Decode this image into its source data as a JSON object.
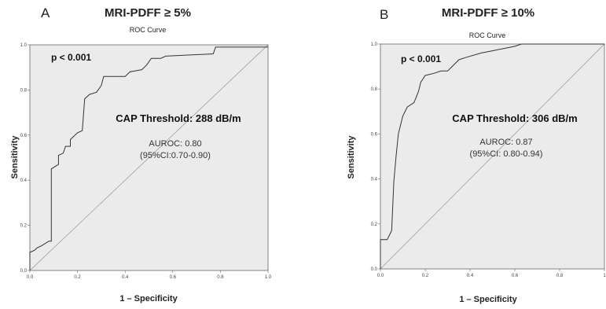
{
  "panels": [
    {
      "letter": "A",
      "title": "MRI-PDFF ≥ 5%",
      "annotations": {
        "p_value": "p < 0.001",
        "threshold": "CAP Threshold: 288 dB/m",
        "auroc": "AUROC: 0.80",
        "ci": "(95%CI:0.70-0.90)"
      }
    },
    {
      "letter": "B",
      "title": "MRI-PDFF ≥ 10%",
      "annotations": {
        "p_value": "p < 0.001",
        "threshold": "CAP Threshold: 306 dB/m",
        "auroc": "AUROC: 0.87",
        "ci": "(95%CI: 0.80-0.94)"
      }
    }
  ],
  "chart_data": [
    {
      "type": "line",
      "title": "ROC Curve",
      "xlabel": "1 – Specificity",
      "ylabel": "Sensitivity",
      "xlim": [
        0,
        1
      ],
      "ylim": [
        0,
        1
      ],
      "x_ticks": [
        "0.0",
        "0.2",
        "0.4",
        "0.6",
        "0.8",
        "1.0"
      ],
      "y_ticks": [
        "0.0",
        "0.2",
        "0.4",
        "0.6",
        "0.8",
        "1.0"
      ],
      "grid": false,
      "series": [
        {
          "points": [
            [
              0.0,
              0.0
            ],
            [
              0.0,
              0.08
            ],
            [
              0.02,
              0.09
            ],
            [
              0.03,
              0.1
            ],
            [
              0.05,
              0.11
            ],
            [
              0.08,
              0.13
            ],
            [
              0.09,
              0.13
            ],
            [
              0.09,
              0.45
            ],
            [
              0.12,
              0.47
            ],
            [
              0.12,
              0.51
            ],
            [
              0.14,
              0.52
            ],
            [
              0.15,
              0.55
            ],
            [
              0.17,
              0.55
            ],
            [
              0.17,
              0.58
            ],
            [
              0.2,
              0.61
            ],
            [
              0.22,
              0.62
            ],
            [
              0.23,
              0.76
            ],
            [
              0.25,
              0.78
            ],
            [
              0.28,
              0.79
            ],
            [
              0.3,
              0.82
            ],
            [
              0.31,
              0.86
            ],
            [
              0.4,
              0.86
            ],
            [
              0.42,
              0.88
            ],
            [
              0.47,
              0.89
            ],
            [
              0.49,
              0.91
            ],
            [
              0.51,
              0.94
            ],
            [
              0.55,
              0.94
            ],
            [
              0.57,
              0.95
            ],
            [
              0.77,
              0.96
            ],
            [
              0.78,
              0.99
            ],
            [
              1.0,
              0.99
            ]
          ]
        }
      ]
    },
    {
      "type": "line",
      "title": "ROC Curve",
      "xlabel": "1 – Specificity",
      "ylabel": "Sensitivity",
      "xlim": [
        0,
        1
      ],
      "ylim": [
        0,
        1
      ],
      "x_ticks": [
        "0.0",
        "0.2",
        "0.4",
        "0.6",
        "0.8",
        "1"
      ],
      "y_ticks": [
        "0.0",
        "0.2",
        "0.4",
        "0.6",
        "0.8",
        "1.0"
      ],
      "grid": false,
      "series": [
        {
          "points": [
            [
              0.0,
              0.0
            ],
            [
              0.0,
              0.13
            ],
            [
              0.03,
              0.13
            ],
            [
              0.04,
              0.15
            ],
            [
              0.05,
              0.17
            ],
            [
              0.06,
              0.39
            ],
            [
              0.07,
              0.5
            ],
            [
              0.08,
              0.6
            ],
            [
              0.1,
              0.68
            ],
            [
              0.12,
              0.72
            ],
            [
              0.15,
              0.74
            ],
            [
              0.17,
              0.79
            ],
            [
              0.18,
              0.83
            ],
            [
              0.2,
              0.86
            ],
            [
              0.24,
              0.87
            ],
            [
              0.27,
              0.88
            ],
            [
              0.3,
              0.88
            ],
            [
              0.32,
              0.9
            ],
            [
              0.35,
              0.93
            ],
            [
              0.38,
              0.94
            ],
            [
              0.45,
              0.96
            ],
            [
              0.5,
              0.97
            ],
            [
              0.55,
              0.98
            ],
            [
              0.6,
              0.99
            ],
            [
              0.63,
              1.0
            ],
            [
              1.0,
              1.0
            ]
          ]
        }
      ]
    }
  ]
}
